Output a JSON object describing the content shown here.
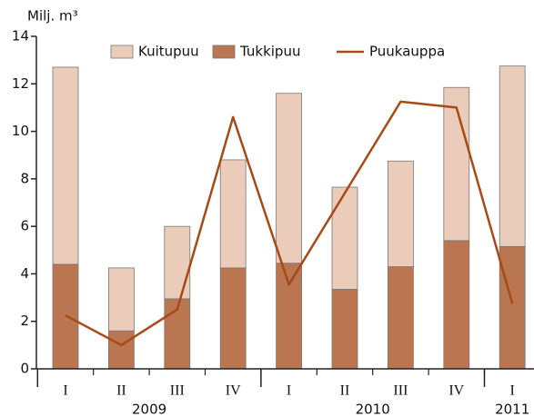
{
  "chart_data": {
    "type": "bar",
    "y_unit_label": "Milj. m³",
    "categories": [
      "I",
      "II",
      "III",
      "IV",
      "I",
      "II",
      "III",
      "IV",
      "I"
    ],
    "group_labels": [
      "2009",
      "2010",
      "2011"
    ],
    "group_spans": [
      4,
      4,
      1
    ],
    "series": [
      {
        "name": "Kuitupuu",
        "type": "bar",
        "color": "#ebcbb9",
        "values": [
          8.3,
          2.65,
          3.05,
          4.55,
          7.15,
          4.3,
          4.45,
          6.45,
          7.6
        ]
      },
      {
        "name": "Tukkipuu",
        "type": "bar",
        "color": "#b97650",
        "values": [
          4.4,
          1.6,
          2.95,
          4.25,
          4.45,
          3.35,
          4.3,
          5.4,
          5.15
        ]
      },
      {
        "name": "Puukauppa",
        "type": "line",
        "color": "#a84a14",
        "values": [
          2.25,
          1.0,
          2.5,
          10.6,
          3.55,
          7.4,
          11.25,
          11.0,
          2.75
        ]
      }
    ],
    "stack_order": [
      1,
      0
    ],
    "ylim": [
      0,
      14
    ],
    "yticks": [
      0,
      2,
      4,
      6,
      8,
      10,
      12,
      14
    ]
  }
}
